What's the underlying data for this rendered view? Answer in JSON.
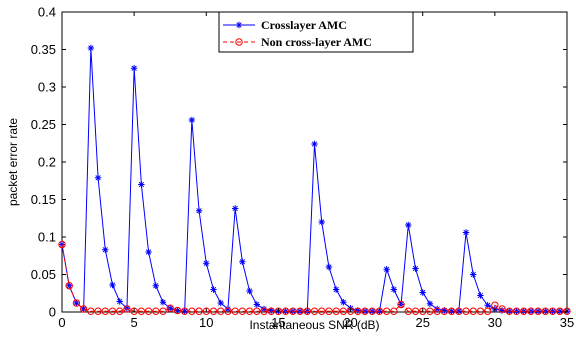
{
  "chart_data": {
    "type": "line",
    "xlabel": "Instantaneous SNR (dB)",
    "ylabel": "packet error rate",
    "xlim": [
      0,
      35
    ],
    "ylim": [
      0,
      0.4
    ],
    "xticks": [
      0,
      5,
      10,
      15,
      20,
      25,
      30,
      35
    ],
    "yticks": [
      0,
      0.05,
      0.1,
      0.15,
      0.2,
      0.25,
      0.3,
      0.35,
      0.4
    ],
    "ytick_labels": [
      "0",
      "0.05",
      "0.1",
      "0.15",
      "0.2",
      "0.25",
      "0.3",
      "0.35",
      "0.4"
    ],
    "grid": false,
    "legend_position": "top-center",
    "x": [
      0,
      0.5,
      1,
      1.5,
      2,
      2.5,
      3,
      3.5,
      4,
      4.5,
      5,
      5.5,
      6,
      6.5,
      7,
      7.5,
      8,
      8.5,
      9,
      9.5,
      10,
      10.5,
      11,
      11.5,
      12,
      12.5,
      13,
      13.5,
      14,
      14.5,
      15,
      15.5,
      16,
      16.5,
      17,
      17.5,
      18,
      18.5,
      19,
      19.5,
      20,
      20.5,
      21,
      21.5,
      22,
      22.5,
      23,
      23.5,
      24,
      24.5,
      25,
      25.5,
      26,
      26.5,
      27,
      27.5,
      28,
      28.5,
      29,
      29.5,
      30,
      30.5,
      31,
      31.5,
      32,
      32.5,
      33,
      33.5,
      34,
      34.5,
      35
    ],
    "series": [
      {
        "name": "Crosslayer AMC",
        "color": "#0000ff",
        "marker": "asterisk",
        "values": [
          0.09,
          0.035,
          0.012,
          0.004,
          0.352,
          0.179,
          0.083,
          0.036,
          0.014,
          0.005,
          0.325,
          0.17,
          0.08,
          0.035,
          0.013,
          0.005,
          0.002,
          0.001,
          0.256,
          0.135,
          0.065,
          0.03,
          0.012,
          0.004,
          0.138,
          0.067,
          0.028,
          0.01,
          0.004,
          0.002,
          0.001,
          0.001,
          0.001,
          0.001,
          0.001,
          0.224,
          0.12,
          0.06,
          0.03,
          0.013,
          0.005,
          0.002,
          0.001,
          0.001,
          0.001,
          0.057,
          0.03,
          0.01,
          0.116,
          0.058,
          0.026,
          0.011,
          0.004,
          0.002,
          0.001,
          0.001,
          0.106,
          0.05,
          0.022,
          0.009,
          0.004,
          0.002,
          0.001,
          0.001,
          0.001,
          0.001,
          0.001,
          0.001,
          0.001,
          0.001,
          0.001
        ]
      },
      {
        "name": "Non cross-layer AMC",
        "color": "#ff0000",
        "marker": "circle",
        "values": [
          0.09,
          0.035,
          0.012,
          0.004,
          0.001,
          0.001,
          0.001,
          0.001,
          0.001,
          0.004,
          0.001,
          0.001,
          0.001,
          0.001,
          0.001,
          0.005,
          0.002,
          0.001,
          0.001,
          0.001,
          0.001,
          0.001,
          0.001,
          0.001,
          0.001,
          0.001,
          0.001,
          0.001,
          0.001,
          0.001,
          0.001,
          0.001,
          0.001,
          0.001,
          0.001,
          0.001,
          0.001,
          0.001,
          0.001,
          0.001,
          0.001,
          0.001,
          0.001,
          0.001,
          0.001,
          0.001,
          0.001,
          0.01,
          0.001,
          0.001,
          0.001,
          0.001,
          0.001,
          0.001,
          0.001,
          0.001,
          0.001,
          0.001,
          0.001,
          0.001,
          0.009,
          0.004,
          0.001,
          0.001,
          0.001,
          0.001,
          0.001,
          0.001,
          0.001,
          0.001,
          0.001
        ]
      }
    ]
  }
}
